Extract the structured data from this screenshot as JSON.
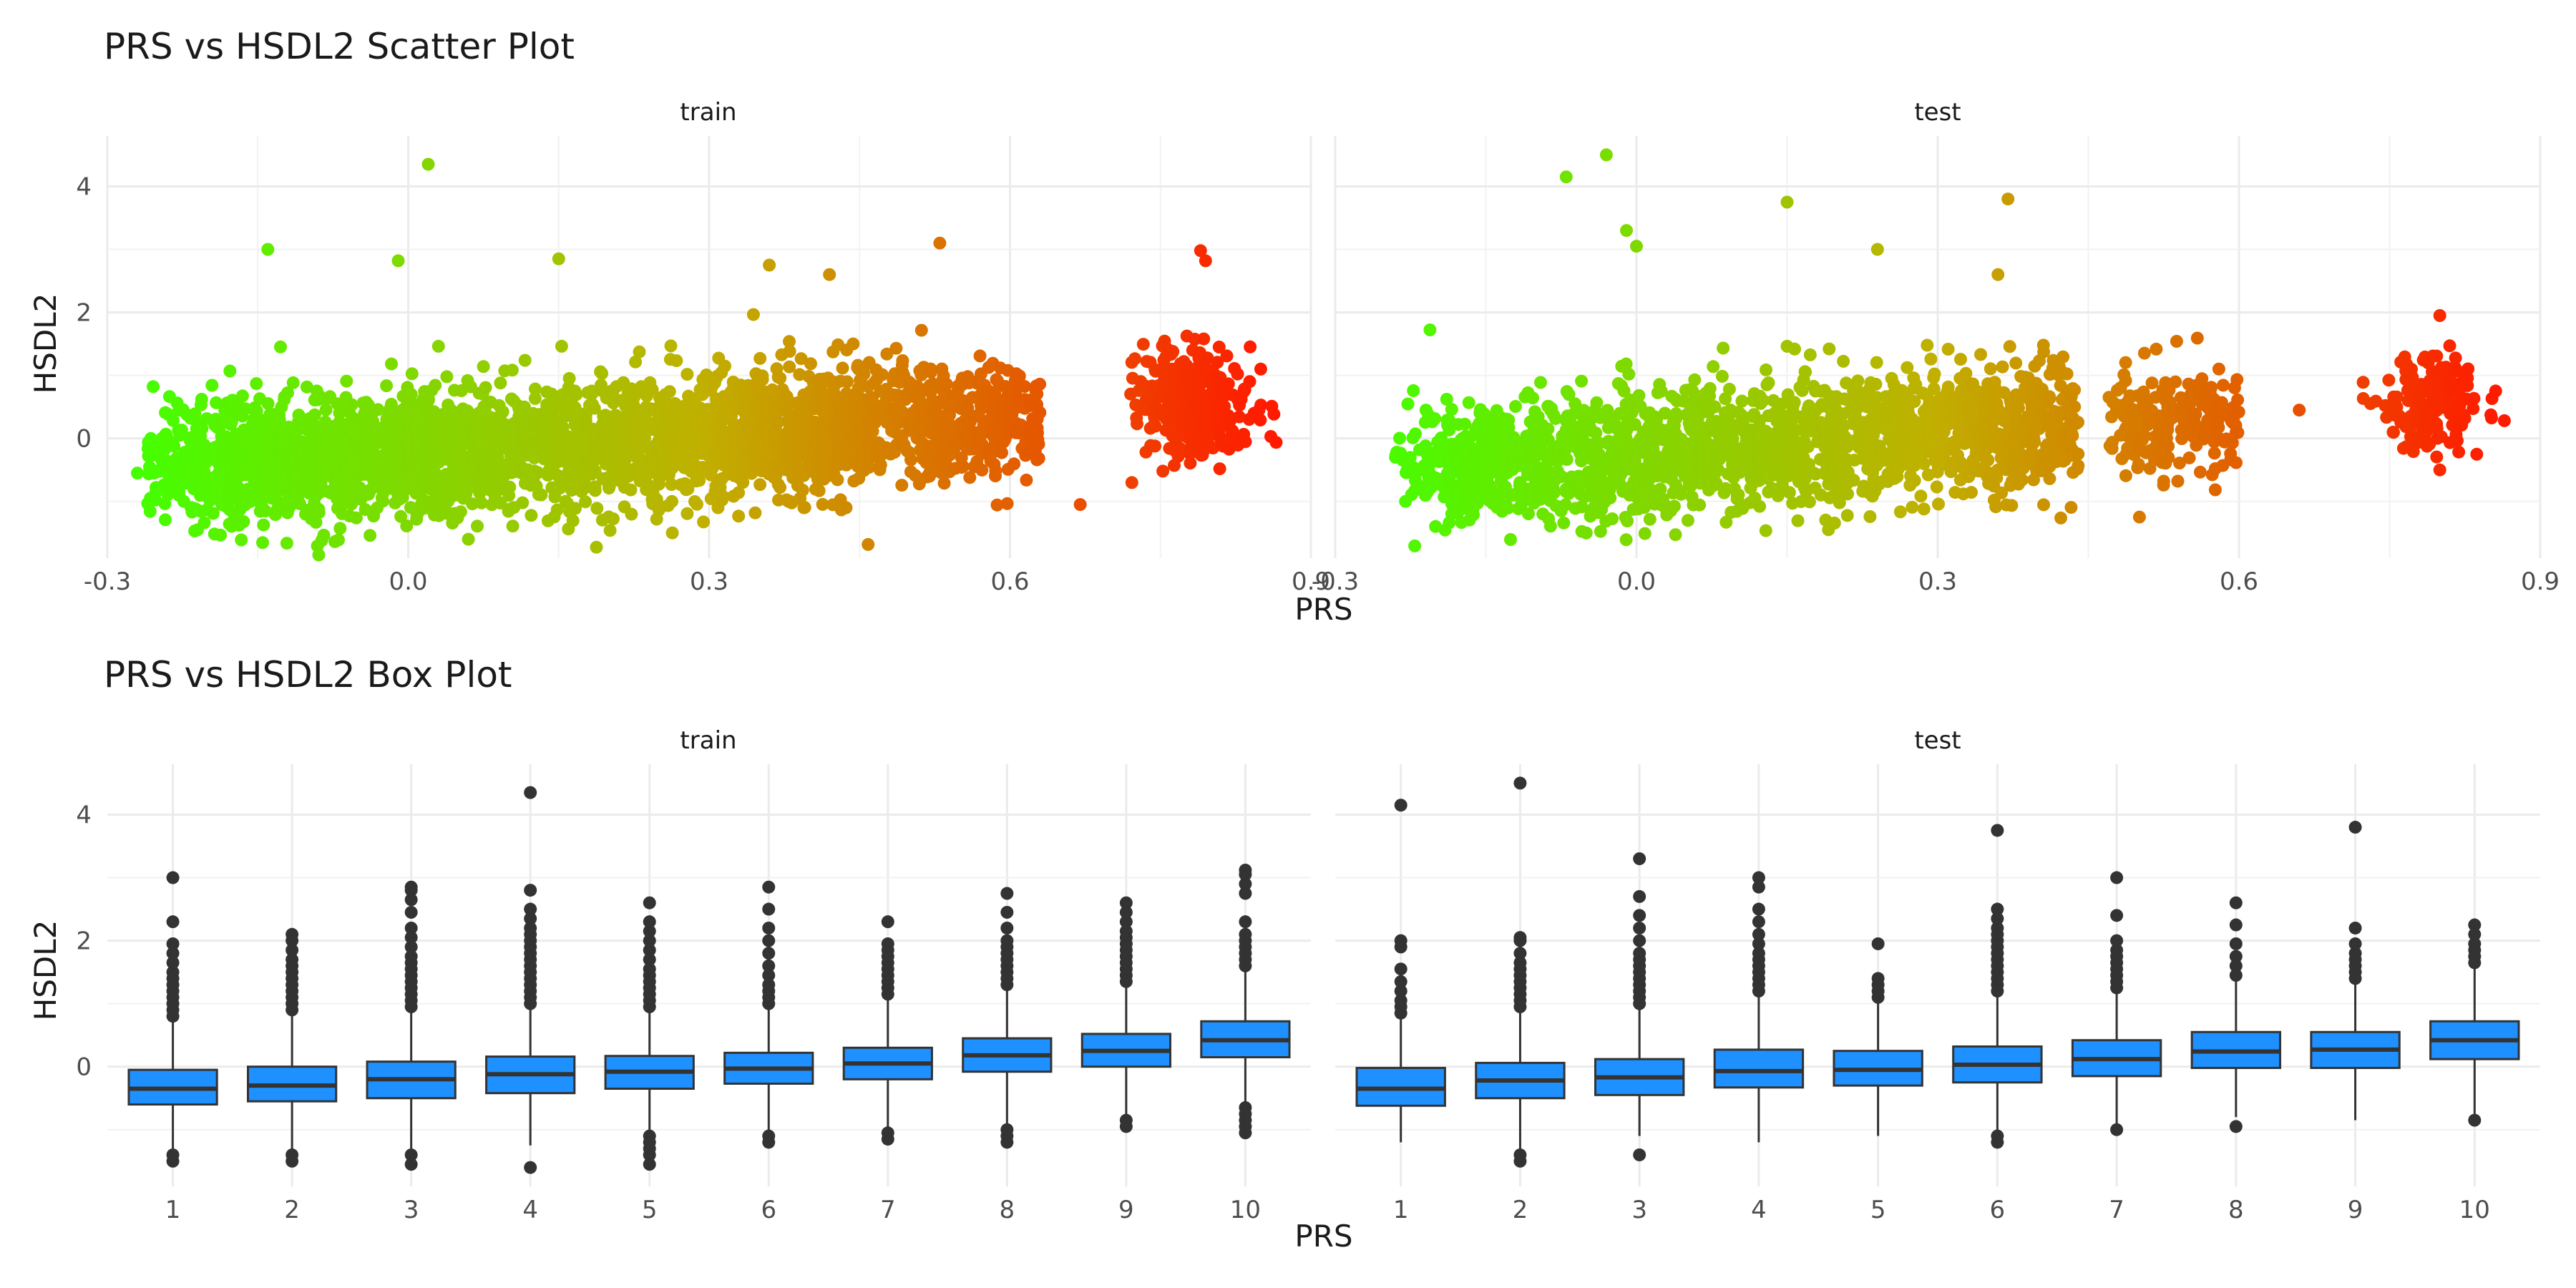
{
  "figure": {
    "scatter_title": "PRS vs HSDL2 Scatter Plot",
    "box_title": "PRS vs HSDL2 Box Plot"
  },
  "chart_data": [
    {
      "type": "scatter",
      "title": "PRS vs HSDL2 Scatter Plot",
      "xlabel": "PRS",
      "ylabel": "HSDL2",
      "xlim": [
        -0.3,
        0.9
      ],
      "ylim": [
        -1.9,
        4.8
      ],
      "xticks": [
        "-0.3",
        "0.0",
        "0.3",
        "0.6",
        "0.9"
      ],
      "xtick_values": [
        -0.3,
        0.0,
        0.3,
        0.6,
        0.9
      ],
      "yticks": [
        "0",
        "2",
        "4"
      ],
      "ytick_values": [
        0,
        2,
        4
      ],
      "grid": true,
      "color_gradient": {
        "low": "#44ff00",
        "mid": "#c0b000",
        "high": "#ff1a00",
        "mapped_to": "x"
      },
      "facets": [
        {
          "name": "train",
          "clusters": [
            {
              "x_range": [
                -0.26,
                0.46
              ],
              "y_center": [
                -0.45,
                0.15
              ],
              "y_sd": 0.5,
              "n": 2600
            },
            {
              "x_range": [
                0.45,
                0.63
              ],
              "y_center": [
                0.25,
                0.35
              ],
              "y_sd": 0.45,
              "n": 420
            },
            {
              "x_center": 0.785,
              "x_sd": 0.028,
              "y_center": 0.55,
              "y_sd": 0.45,
              "n": 320
            }
          ],
          "outliers": [
            {
              "x": 0.02,
              "y": 4.35
            },
            {
              "x": -0.14,
              "y": 3.0
            },
            {
              "x": 0.53,
              "y": 3.1
            },
            {
              "x": 0.79,
              "y": 2.98
            },
            {
              "x": 0.795,
              "y": 2.82
            },
            {
              "x": 0.15,
              "y": 2.85
            },
            {
              "x": -0.01,
              "y": 2.82
            },
            {
              "x": 0.36,
              "y": 2.75
            },
            {
              "x": 0.42,
              "y": 2.6
            },
            {
              "x": -0.21,
              "y": -1.45
            },
            {
              "x": 0.06,
              "y": -1.6
            },
            {
              "x": 0.67,
              "y": -1.05
            },
            {
              "x": -0.27,
              "y": -0.55
            },
            {
              "x": 0.85,
              "y": 1.1
            }
          ]
        },
        {
          "name": "test",
          "clusters": [
            {
              "x_range": [
                -0.24,
                0.44
              ],
              "y_center": [
                -0.45,
                0.15
              ],
              "y_sd": 0.5,
              "n": 1800
            },
            {
              "x_range": [
                0.47,
                0.6
              ],
              "y_center": [
                0.25,
                0.35
              ],
              "y_sd": 0.45,
              "n": 220
            },
            {
              "x_center": 0.79,
              "x_sd": 0.025,
              "y_center": 0.55,
              "y_sd": 0.4,
              "n": 180
            }
          ],
          "outliers": [
            {
              "x": -0.03,
              "y": 4.5
            },
            {
              "x": -0.07,
              "y": 4.15
            },
            {
              "x": 0.15,
              "y": 3.75
            },
            {
              "x": 0.37,
              "y": 3.8
            },
            {
              "x": -0.01,
              "y": 3.3
            },
            {
              "x": 0.24,
              "y": 3.0
            },
            {
              "x": 0.0,
              "y": 3.05
            },
            {
              "x": 0.36,
              "y": 2.6
            },
            {
              "x": 0.8,
              "y": 1.95
            },
            {
              "x": 0.66,
              "y": 0.45
            },
            {
              "x": -0.24,
              "y": -0.3
            },
            {
              "x": -0.23,
              "y": -1.0
            },
            {
              "x": -0.05,
              "y": -1.5
            },
            {
              "x": 0.8,
              "y": -0.5
            }
          ]
        }
      ]
    },
    {
      "type": "box",
      "title": "PRS vs HSDL2 Box Plot",
      "xlabel": "PRS",
      "ylabel": "HSDL2",
      "categories": [
        "1",
        "2",
        "3",
        "4",
        "5",
        "6",
        "7",
        "8",
        "9",
        "10"
      ],
      "ylim": [
        -1.9,
        4.8
      ],
      "yticks": [
        "0",
        "2",
        "4"
      ],
      "ytick_values": [
        0,
        2,
        4
      ],
      "box_color": "#1e90ff",
      "grid": true,
      "facets": [
        {
          "name": "train",
          "boxes": [
            {
              "q1": -0.6,
              "median": -0.35,
              "q3": -0.05,
              "whislo": -1.35,
              "whishi": 0.75,
              "outliers_top": [
                0.8,
                0.9,
                1.0,
                1.1,
                1.2,
                1.3,
                1.4,
                1.5,
                1.65,
                1.8,
                1.95,
                2.3,
                3.0
              ],
              "outliers_bottom": [
                -1.4,
                -1.5
              ]
            },
            {
              "q1": -0.55,
              "median": -0.3,
              "q3": -0.0,
              "whislo": -1.35,
              "whishi": 0.85,
              "outliers_top": [
                0.9,
                1.0,
                1.1,
                1.2,
                1.3,
                1.4,
                1.5,
                1.6,
                1.7,
                1.85,
                2.0,
                2.1
              ],
              "outliers_bottom": [
                -1.4,
                -1.5
              ]
            },
            {
              "q1": -0.5,
              "median": -0.2,
              "q3": 0.08,
              "whislo": -1.35,
              "whishi": 0.9,
              "outliers_top": [
                0.95,
                1.05,
                1.15,
                1.25,
                1.35,
                1.45,
                1.55,
                1.65,
                1.75,
                1.9,
                2.05,
                2.2,
                2.45,
                2.65,
                2.8,
                2.85
              ],
              "outliers_bottom": [
                -1.4,
                -1.55
              ]
            },
            {
              "q1": -0.42,
              "median": -0.12,
              "q3": 0.16,
              "whislo": -1.25,
              "whishi": 0.98,
              "outliers_top": [
                1.0,
                1.1,
                1.2,
                1.3,
                1.4,
                1.5,
                1.6,
                1.7,
                1.8,
                1.9,
                2.0,
                2.1,
                2.2,
                2.35,
                2.5,
                2.8,
                4.35
              ],
              "outliers_bottom": [
                -1.6
              ]
            },
            {
              "q1": -0.35,
              "median": -0.08,
              "q3": 0.17,
              "whislo": -1.0,
              "whishi": 0.9,
              "outliers_top": [
                0.95,
                1.05,
                1.15,
                1.25,
                1.35,
                1.45,
                1.55,
                1.7,
                1.85,
                2.0,
                2.15,
                2.3,
                2.6
              ],
              "outliers_bottom": [
                -1.1,
                -1.2,
                -1.3,
                -1.4,
                -1.55
              ]
            },
            {
              "q1": -0.27,
              "median": -0.03,
              "q3": 0.22,
              "whislo": -1.05,
              "whishi": 0.95,
              "outliers_top": [
                1.0,
                1.1,
                1.2,
                1.3,
                1.45,
                1.6,
                1.8,
                2.0,
                2.2,
                2.5,
                2.85
              ],
              "outliers_bottom": [
                -1.1,
                -1.2
              ]
            },
            {
              "q1": -0.2,
              "median": 0.05,
              "q3": 0.3,
              "whislo": -1.0,
              "whishi": 1.1,
              "outliers_top": [
                1.15,
                1.25,
                1.35,
                1.45,
                1.55,
                1.65,
                1.75,
                1.85,
                1.95,
                2.3
              ],
              "outliers_bottom": [
                -1.05,
                -1.15
              ]
            },
            {
              "q1": -0.08,
              "median": 0.18,
              "q3": 0.45,
              "whislo": -0.95,
              "whishi": 1.25,
              "outliers_top": [
                1.3,
                1.4,
                1.5,
                1.6,
                1.7,
                1.8,
                1.9,
                2.0,
                2.2,
                2.45,
                2.75
              ],
              "outliers_bottom": [
                -1.0,
                -1.1,
                -1.2
              ]
            },
            {
              "q1": 0.0,
              "median": 0.25,
              "q3": 0.52,
              "whislo": -0.75,
              "whishi": 1.3,
              "outliers_top": [
                1.35,
                1.45,
                1.55,
                1.65,
                1.75,
                1.85,
                1.95,
                2.05,
                2.15,
                2.3,
                2.45,
                2.6
              ],
              "outliers_bottom": [
                -0.85,
                -0.95
              ]
            },
            {
              "q1": 0.15,
              "median": 0.42,
              "q3": 0.72,
              "whislo": -0.6,
              "whishi": 1.55,
              "outliers_top": [
                1.6,
                1.7,
                1.8,
                1.9,
                2.0,
                2.1,
                2.3,
                2.75,
                2.9,
                3.05,
                3.12
              ],
              "outliers_bottom": [
                -0.65,
                -0.75,
                -0.85,
                -0.95,
                -1.05
              ]
            }
          ]
        },
        {
          "name": "test",
          "boxes": [
            {
              "q1": -0.62,
              "median": -0.35,
              "q3": -0.02,
              "whislo": -1.2,
              "whishi": 0.8,
              "outliers_top": [
                0.85,
                0.95,
                1.05,
                1.2,
                1.35,
                1.55,
                1.9,
                2.0,
                4.15
              ],
              "outliers_bottom": []
            },
            {
              "q1": -0.5,
              "median": -0.22,
              "q3": 0.06,
              "whislo": -1.3,
              "whishi": 0.9,
              "outliers_top": [
                0.95,
                1.05,
                1.15,
                1.25,
                1.35,
                1.45,
                1.55,
                1.65,
                1.8,
                2.0,
                2.05,
                4.5
              ],
              "outliers_bottom": [
                -1.4,
                -1.5
              ]
            },
            {
              "q1": -0.45,
              "median": -0.17,
              "q3": 0.12,
              "whislo": -1.1,
              "whishi": 0.95,
              "outliers_top": [
                1.0,
                1.1,
                1.2,
                1.3,
                1.4,
                1.5,
                1.6,
                1.7,
                1.8,
                2.0,
                2.2,
                2.4,
                2.7,
                3.3
              ],
              "outliers_bottom": [
                -1.4
              ]
            },
            {
              "q1": -0.33,
              "median": -0.07,
              "q3": 0.27,
              "whislo": -1.2,
              "whishi": 1.15,
              "outliers_top": [
                1.2,
                1.3,
                1.4,
                1.5,
                1.6,
                1.7,
                1.8,
                1.95,
                2.1,
                2.3,
                2.5,
                2.85,
                3.0
              ],
              "outliers_bottom": []
            },
            {
              "q1": -0.3,
              "median": -0.05,
              "q3": 0.25,
              "whislo": -1.1,
              "whishi": 1.05,
              "outliers_top": [
                1.1,
                1.2,
                1.3,
                1.4,
                1.95
              ],
              "outliers_bottom": []
            },
            {
              "q1": -0.25,
              "median": 0.03,
              "q3": 0.32,
              "whislo": -1.0,
              "whishi": 1.15,
              "outliers_top": [
                1.2,
                1.3,
                1.4,
                1.5,
                1.6,
                1.7,
                1.8,
                1.9,
                2.0,
                2.1,
                2.2,
                2.35,
                2.5,
                3.75
              ],
              "outliers_bottom": [
                -1.1,
                -1.2
              ]
            },
            {
              "q1": -0.15,
              "median": 0.12,
              "q3": 0.42,
              "whislo": -0.9,
              "whishi": 1.2,
              "outliers_top": [
                1.25,
                1.35,
                1.45,
                1.55,
                1.65,
                1.75,
                1.85,
                2.0,
                2.4,
                3.0
              ],
              "outliers_bottom": [
                -1.0
              ]
            },
            {
              "q1": -0.02,
              "median": 0.24,
              "q3": 0.55,
              "whislo": -0.8,
              "whishi": 1.35,
              "outliers_top": [
                1.45,
                1.6,
                1.75,
                1.95,
                2.25,
                2.6
              ],
              "outliers_bottom": [
                -0.95
              ]
            },
            {
              "q1": -0.02,
              "median": 0.27,
              "q3": 0.55,
              "whislo": -0.85,
              "whishi": 1.35,
              "outliers_top": [
                1.4,
                1.5,
                1.6,
                1.7,
                1.8,
                1.95,
                2.2,
                3.8
              ],
              "outliers_bottom": []
            },
            {
              "q1": 0.12,
              "median": 0.42,
              "q3": 0.72,
              "whislo": -0.75,
              "whishi": 1.6,
              "outliers_top": [
                1.65,
                1.75,
                1.85,
                1.95,
                2.1,
                2.25
              ],
              "outliers_bottom": [
                -0.85
              ]
            }
          ]
        }
      ]
    }
  ]
}
